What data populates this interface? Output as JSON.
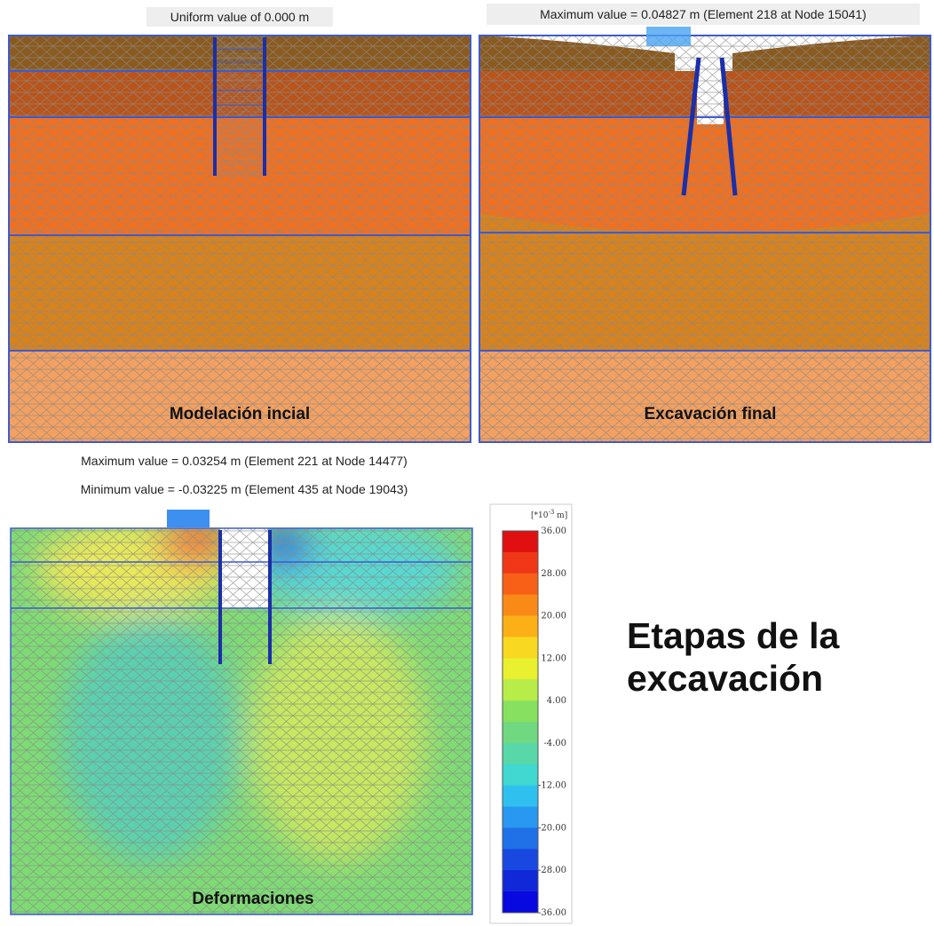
{
  "panels": [
    {
      "headers": [
        "Uniform value of 0.000 m"
      ],
      "label": "Modelación incial"
    },
    {
      "headers": [
        "Maximum value = 0.04827 m (Element 218 at Node 15041)"
      ],
      "label": "Excavación final"
    },
    {
      "headers": [
        "Maximum value = 0.03254 m (Element 221 at Node 14477)",
        "Minimum value = -0.03225 m (Element 435 at Node 19043)"
      ],
      "label": "Deformaciones"
    }
  ],
  "legend": {
    "unit_base": "[*10",
    "unit_exp": "-3",
    "unit_end": " m]",
    "ticks": [
      "36.00",
      "28.00",
      "20.00",
      "12.00",
      "4.00",
      "-4.00",
      "-12.00",
      "-20.00",
      "-28.00",
      "-36.00"
    ]
  },
  "title": [
    "Etapas de la",
    "excavación"
  ]
}
